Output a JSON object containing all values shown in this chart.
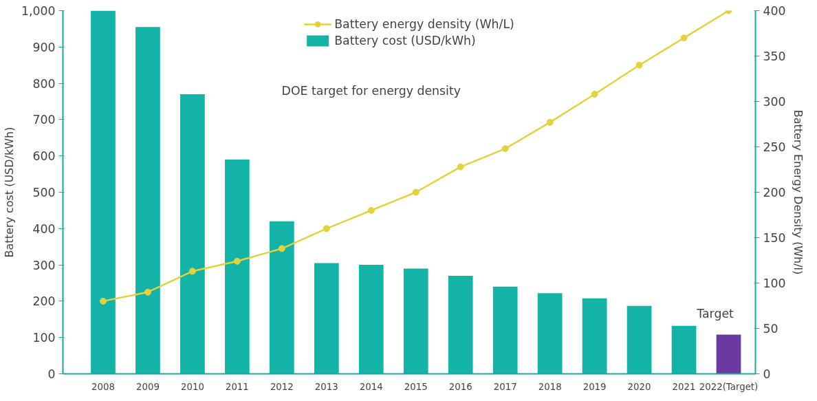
{
  "chart_data": {
    "type": "bar",
    "categories": [
      "2008",
      "2009",
      "2010",
      "2011",
      "2012",
      "2013",
      "2014",
      "2015",
      "2016",
      "2017",
      "2018",
      "2019",
      "2020",
      "2021",
      "2022(Target)"
    ],
    "series": [
      {
        "name": "Battery cost (USD/kWh)",
        "colors": [
          "#14b3a8",
          "#14b3a8",
          "#14b3a8",
          "#14b3a8",
          "#14b3a8",
          "#14b3a8",
          "#14b3a8",
          "#14b3a8",
          "#14b3a8",
          "#14b3a8",
          "#14b3a8",
          "#14b3a8",
          "#14b3a8",
          "#14b3a8",
          "#6a3a9e"
        ],
        "values": [
          1000,
          955,
          770,
          590,
          420,
          305,
          300,
          290,
          270,
          240,
          222,
          208,
          187,
          132,
          108
        ]
      },
      {
        "name": "Battery energy density (Wh/L)",
        "type": "line",
        "axis": "y2",
        "color": "#e3d23c",
        "marker": "circle",
        "values": [
          80,
          90,
          113,
          124,
          138,
          160,
          180,
          200,
          228,
          248,
          277,
          308,
          340,
          370,
          400
        ]
      }
    ],
    "ylabel": "Battery cost (USD/kWh)",
    "y2label": "Battery Energy Density (Wh/l)",
    "ylim": [
      0,
      1000
    ],
    "yticks": [
      0,
      100,
      200,
      300,
      400,
      500,
      600,
      700,
      800,
      900,
      {
        "value": 1000,
        "label": "1,000"
      }
    ],
    "y2lim": [
      0,
      400
    ],
    "y2ticks": [
      0,
      50,
      100,
      150,
      200,
      250,
      300,
      350,
      400
    ],
    "annotations": [
      "DOE target for energy density",
      "Target"
    ],
    "legend": "top",
    "grid": false
  }
}
